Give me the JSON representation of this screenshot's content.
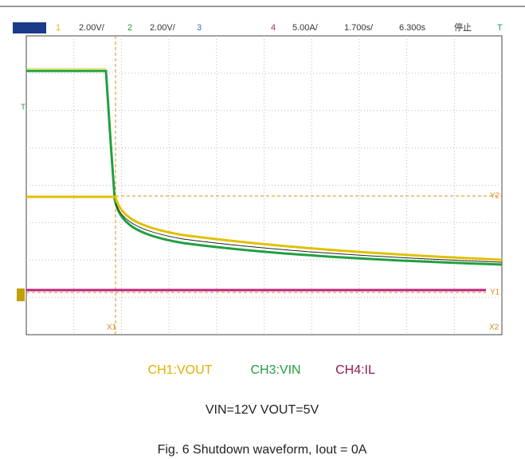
{
  "scope": {
    "status_bar": {
      "ch1": "1",
      "ch1_scale": "2.00V/",
      "ch2": "2",
      "ch2_scale": "2.00V/",
      "ch3": "3",
      "ch4": "4",
      "ch4_scale": "5.00A/",
      "timebase": "1.700s/",
      "delay": "6.300s",
      "state": "停止",
      "trigger": "T"
    },
    "markers": {
      "trigger_level": "T",
      "x1": "X1",
      "x2": "X2",
      "y1": "Y1",
      "y2": "Y2"
    }
  },
  "legend": [
    "CH1:VOUT",
    "CH3:VIN",
    "CH4:IL"
  ],
  "conditions": "VIN=12V VOUT=5V",
  "caption": "Fig. 6 Shutdown waveform, Iout = 0A"
}
